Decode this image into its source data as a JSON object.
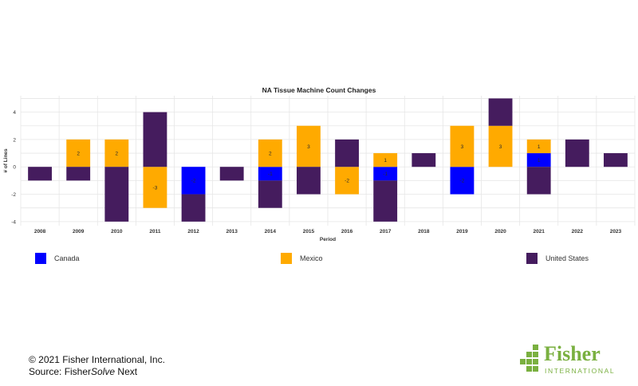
{
  "chart_data": {
    "type": "bar",
    "stacked": true,
    "title": "NA Tissue Machine Count Changes",
    "xlabel": "Period",
    "ylabel": "# of Lines",
    "ylim": [
      -4.3,
      5.2
    ],
    "yticks": [
      -4,
      -2,
      0,
      2,
      4
    ],
    "grid": true,
    "legend_position": "bottom",
    "categories": [
      "2008",
      "2009",
      "2010",
      "2011",
      "2012",
      "2013",
      "2014",
      "2015",
      "2016",
      "2017",
      "2018",
      "2019",
      "2020",
      "2021",
      "2022",
      "2023"
    ],
    "series": [
      {
        "name": "Canada",
        "color": "#0000ff",
        "values": [
          0,
          0,
          0,
          0,
          -2,
          0,
          -1,
          0,
          0,
          -1,
          0,
          -2,
          0,
          1,
          0,
          0
        ],
        "labels": [
          "",
          "",
          "",
          "",
          "-2",
          "",
          "-1",
          "",
          "",
          "-1",
          "",
          "-2",
          "",
          "1",
          "",
          ""
        ]
      },
      {
        "name": "Mexico",
        "color": "#ffaa00",
        "values": [
          0,
          2,
          2,
          -3,
          0,
          0,
          2,
          3,
          -2,
          1,
          0,
          3,
          3,
          1,
          0,
          0
        ],
        "labels": [
          "",
          "2",
          "2",
          "-3",
          "",
          "",
          "2",
          "3",
          "-2",
          "1",
          "",
          "3",
          "3",
          "1",
          "",
          ""
        ]
      },
      {
        "name": "United States",
        "color": "#451c5e",
        "values": [
          -1,
          -1,
          -4,
          4,
          -2,
          -1,
          -2,
          -2,
          2,
          -3,
          1,
          0,
          2,
          -2,
          2,
          1
        ],
        "labels": [
          "",
          "",
          "",
          "",
          "",
          "",
          "",
          "",
          "",
          "",
          "",
          "",
          "",
          "",
          "",
          ""
        ]
      }
    ]
  },
  "legend": {
    "canada": "Canada",
    "mexico": "Mexico",
    "us": "United States"
  },
  "footer": {
    "copyright": "© 2021 Fisher International, Inc.",
    "source_prefix": "Source: Fisher",
    "source_italic": "Solve",
    "source_suffix": " Next"
  },
  "logo": {
    "name": "Fisher",
    "sub": "INTERNATIONAL",
    "color": "#7ab040"
  }
}
